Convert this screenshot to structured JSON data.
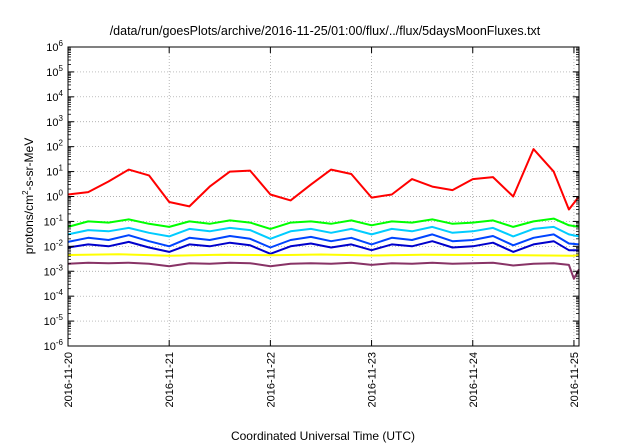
{
  "chart_data": {
    "type": "line",
    "title": "/data/run/goesPlots/archive/2016-11-25/01:00/flux/../flux/5daysMoonFluxes.txt",
    "xlabel": "Coordinated Universal Time (UTC)",
    "ylabel": "protons/cm²-s-sr-MeV",
    "ylabel_parts": {
      "pre": "protons/cm",
      "sup": "2",
      "post": "-s-sr-MeV"
    },
    "yscale": "log",
    "ylim_exp": [
      -6,
      6
    ],
    "y_ticks": [
      {
        "base": "10",
        "exp": "-6"
      },
      {
        "base": "10",
        "exp": "-5"
      },
      {
        "base": "10",
        "exp": "-4"
      },
      {
        "base": "10",
        "exp": "-3"
      },
      {
        "base": "10",
        "exp": "-2"
      },
      {
        "base": "10",
        "exp": "-1"
      },
      {
        "base": "10",
        "exp": "0"
      },
      {
        "base": "10",
        "exp": "1"
      },
      {
        "base": "10",
        "exp": "2"
      },
      {
        "base": "10",
        "exp": "3"
      },
      {
        "base": "10",
        "exp": "4"
      },
      {
        "base": "10",
        "exp": "5"
      },
      {
        "base": "10",
        "exp": "6"
      }
    ],
    "x_ticks": [
      "2016-11-20",
      "2016-11-21",
      "2016-11-22",
      "2016-11-23",
      "2016-11-24",
      "2016-11-25"
    ],
    "xlim_days": [
      0,
      5.05
    ],
    "grid": true,
    "series": [
      {
        "color": "#ff0000",
        "x": [
          0,
          0.2,
          0.4,
          0.6,
          0.8,
          1.0,
          1.2,
          1.4,
          1.6,
          1.8,
          2.0,
          2.2,
          2.4,
          2.6,
          2.8,
          3.0,
          3.2,
          3.4,
          3.6,
          3.8,
          4.0,
          4.2,
          4.4,
          4.6,
          4.8,
          4.95,
          5.05
        ],
        "y": [
          1.2,
          1.5,
          4,
          12,
          7,
          0.6,
          0.4,
          2.5,
          10,
          11,
          1.2,
          0.7,
          3,
          12,
          8,
          0.9,
          1.2,
          5,
          2.5,
          1.8,
          5,
          6,
          1.0,
          80,
          10,
          0.3,
          1.0
        ]
      },
      {
        "color": "#00ff00",
        "x": [
          0,
          0.2,
          0.4,
          0.6,
          0.8,
          1.0,
          1.2,
          1.4,
          1.6,
          1.8,
          2.0,
          2.2,
          2.4,
          2.6,
          2.8,
          3.0,
          3.2,
          3.4,
          3.6,
          3.8,
          4.0,
          4.2,
          4.4,
          4.6,
          4.8,
          4.95,
          5.05
        ],
        "y": [
          0.06,
          0.1,
          0.09,
          0.12,
          0.08,
          0.06,
          0.1,
          0.08,
          0.11,
          0.09,
          0.05,
          0.09,
          0.1,
          0.08,
          0.11,
          0.07,
          0.1,
          0.09,
          0.12,
          0.08,
          0.09,
          0.11,
          0.06,
          0.1,
          0.13,
          0.07,
          0.06
        ]
      },
      {
        "color": "#00ccff",
        "x": [
          0,
          0.2,
          0.4,
          0.6,
          0.8,
          1.0,
          1.2,
          1.4,
          1.6,
          1.8,
          2.0,
          2.2,
          2.4,
          2.6,
          2.8,
          3.0,
          3.2,
          3.4,
          3.6,
          3.8,
          4.0,
          4.2,
          4.4,
          4.6,
          4.8,
          4.95,
          5.05
        ],
        "y": [
          0.03,
          0.045,
          0.04,
          0.055,
          0.035,
          0.025,
          0.05,
          0.04,
          0.055,
          0.045,
          0.02,
          0.04,
          0.05,
          0.035,
          0.05,
          0.03,
          0.05,
          0.04,
          0.06,
          0.035,
          0.04,
          0.055,
          0.025,
          0.05,
          0.06,
          0.03,
          0.025
        ]
      },
      {
        "color": "#0044ff",
        "x": [
          0,
          0.2,
          0.4,
          0.6,
          0.8,
          1.0,
          1.2,
          1.4,
          1.6,
          1.8,
          2.0,
          2.2,
          2.4,
          2.6,
          2.8,
          3.0,
          3.2,
          3.4,
          3.6,
          3.8,
          4.0,
          4.2,
          4.4,
          4.6,
          4.8,
          4.95,
          5.05
        ],
        "y": [
          0.015,
          0.022,
          0.018,
          0.028,
          0.016,
          0.01,
          0.022,
          0.018,
          0.026,
          0.02,
          0.009,
          0.018,
          0.024,
          0.016,
          0.022,
          0.012,
          0.022,
          0.018,
          0.03,
          0.016,
          0.018,
          0.026,
          0.011,
          0.022,
          0.03,
          0.013,
          0.012
        ]
      },
      {
        "color": "#0000cc",
        "x": [
          0,
          0.2,
          0.4,
          0.6,
          0.8,
          1.0,
          1.2,
          1.4,
          1.6,
          1.8,
          2.0,
          2.2,
          2.4,
          2.6,
          2.8,
          3.0,
          3.2,
          3.4,
          3.6,
          3.8,
          4.0,
          4.2,
          4.4,
          4.6,
          4.8,
          4.95,
          5.05
        ],
        "y": [
          0.009,
          0.012,
          0.01,
          0.015,
          0.009,
          0.006,
          0.012,
          0.01,
          0.014,
          0.011,
          0.005,
          0.01,
          0.013,
          0.009,
          0.012,
          0.007,
          0.012,
          0.01,
          0.016,
          0.009,
          0.01,
          0.014,
          0.006,
          0.012,
          0.016,
          0.007,
          0.007
        ]
      },
      {
        "color": "#ffff00",
        "x": [
          0,
          0.5,
          1.0,
          1.5,
          2.0,
          2.5,
          3.0,
          3.5,
          4.0,
          4.5,
          5.0,
          5.05
        ],
        "y": [
          0.0045,
          0.0048,
          0.0042,
          0.0046,
          0.0044,
          0.0047,
          0.0043,
          0.0046,
          0.0045,
          0.0044,
          0.0042,
          0.0045
        ]
      },
      {
        "color": "#883366",
        "x": [
          0,
          0.2,
          0.4,
          0.6,
          0.8,
          1.0,
          1.2,
          1.4,
          1.6,
          1.8,
          2.0,
          2.2,
          2.4,
          2.6,
          2.8,
          3.0,
          3.2,
          3.4,
          3.6,
          3.8,
          4.0,
          4.2,
          4.4,
          4.6,
          4.8,
          4.95,
          5.0,
          5.05
        ],
        "y": [
          0.002,
          0.0022,
          0.0021,
          0.0022,
          0.002,
          0.0016,
          0.0021,
          0.002,
          0.0022,
          0.0021,
          0.0016,
          0.002,
          0.0021,
          0.002,
          0.0022,
          0.0018,
          0.0021,
          0.002,
          0.0022,
          0.002,
          0.0021,
          0.0022,
          0.0017,
          0.002,
          0.0021,
          0.0018,
          0.0005,
          0.0012
        ]
      }
    ]
  }
}
